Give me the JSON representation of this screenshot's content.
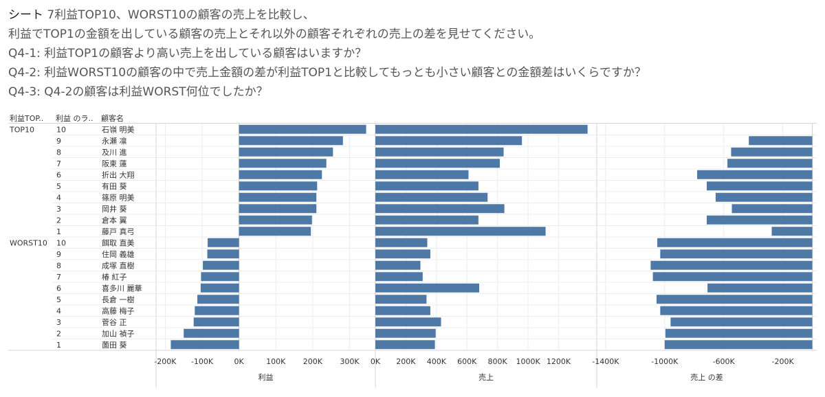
{
  "header": {
    "sheet_label": "シート",
    "line1_rest": " 7利益TOP10、WORST10の顧客の売上を比較し、",
    "line2": "利益でTOP1の金額を出している顧客の売上とそれ以外の顧客それぞれの売上の差を見せてください。",
    "q1": "Q4-1: 利益TOP1の顧客より高い売上を出している顧客はいますか？",
    "q2": "Q4-2: 利益WORST10の顧客の中で売上金額の差が利益TOP1と比較してもっとも小さい顧客との金額差はいくらですか？",
    "q3": "Q4-3: Q4-2の顧客は利益WORST何位でしたか？"
  },
  "columns": {
    "group": "利益TOP..",
    "rank": "利益 のラ..",
    "customer": "顧客名"
  },
  "colors": {
    "bar": "#4e79a7",
    "grid": "#ececec",
    "divider": "#d4d4d4",
    "text": "#333333"
  },
  "chart_data": {
    "type": "bar",
    "orientation": "horizontal",
    "groups": [
      {
        "label": "TOP10",
        "rows": [
          0,
          9
        ]
      },
      {
        "label": "WORST10",
        "rows": [
          10,
          19
        ]
      }
    ],
    "rows": [
      {
        "group": "TOP10",
        "rank": "10",
        "name": "石嶺 明美",
        "profit": 345000,
        "sales": 1390000,
        "diff": 0
      },
      {
        "group": "TOP10",
        "rank": "9",
        "name": "永瀬 凛",
        "profit": 282000,
        "sales": 960000,
        "diff": -430000
      },
      {
        "group": "TOP10",
        "rank": "8",
        "name": "及川 進",
        "profit": 255000,
        "sales": 840000,
        "diff": -550000
      },
      {
        "group": "TOP10",
        "rank": "7",
        "name": "阪東 蓮",
        "profit": 237000,
        "sales": 815000,
        "diff": -575000
      },
      {
        "group": "TOP10",
        "rank": "6",
        "name": "折出 大翔",
        "profit": 225000,
        "sales": 610000,
        "diff": -780000
      },
      {
        "group": "TOP10",
        "rank": "5",
        "name": "有田 葵",
        "profit": 212000,
        "sales": 675000,
        "diff": -715000
      },
      {
        "group": "TOP10",
        "rank": "4",
        "name": "篠原 明美",
        "profit": 210000,
        "sales": 735000,
        "diff": -655000
      },
      {
        "group": "TOP10",
        "rank": "3",
        "name": "岡井 葵",
        "profit": 210000,
        "sales": 845000,
        "diff": -545000
      },
      {
        "group": "TOP10",
        "rank": "2",
        "name": "倉本 翼",
        "profit": 198000,
        "sales": 675000,
        "diff": -715000
      },
      {
        "group": "TOP10",
        "rank": "1",
        "name": "藤戸 真弓",
        "profit": 195000,
        "sales": 1115000,
        "diff": -275000
      },
      {
        "group": "WORST10",
        "rank": "10",
        "name": "餌取 直美",
        "profit": -85000,
        "sales": 340000,
        "diff": -1050000
      },
      {
        "group": "WORST10",
        "rank": "9",
        "name": "住岡 義雄",
        "profit": -86000,
        "sales": 360000,
        "diff": -1030000
      },
      {
        "group": "WORST10",
        "rank": "8",
        "name": "成塚 直樹",
        "profit": -98000,
        "sales": 295000,
        "diff": -1095000
      },
      {
        "group": "WORST10",
        "rank": "7",
        "name": "椿 紅子",
        "profit": -103000,
        "sales": 310000,
        "diff": -1080000
      },
      {
        "group": "WORST10",
        "rank": "6",
        "name": "喜多川 麗華",
        "profit": -104000,
        "sales": 680000,
        "diff": -710000
      },
      {
        "group": "WORST10",
        "rank": "5",
        "name": "長倉 一樹",
        "profit": -113000,
        "sales": 335000,
        "diff": -1055000
      },
      {
        "group": "WORST10",
        "rank": "4",
        "name": "高藤 梅子",
        "profit": -120000,
        "sales": 360000,
        "diff": -1030000
      },
      {
        "group": "WORST10",
        "rank": "3",
        "name": "菅谷 正",
        "profit": -123000,
        "sales": 430000,
        "diff": -960000
      },
      {
        "group": "WORST10",
        "rank": "2",
        "name": "加山 禎子",
        "profit": -150000,
        "sales": 395000,
        "diff": -995000
      },
      {
        "group": "WORST10",
        "rank": "1",
        "name": "薗田 葵",
        "profit": -185000,
        "sales": 390000,
        "diff": -1000000
      }
    ],
    "panels": [
      {
        "key": "profit",
        "xlabel": "利益",
        "xlim": [
          -225000,
          370000
        ],
        "ticks": [
          -200000,
          -100000,
          0,
          100000,
          200000,
          300000
        ],
        "tick_labels": [
          "-200K",
          "-100K",
          "0K",
          "100K",
          "200K",
          "300K"
        ]
      },
      {
        "key": "sales",
        "xlabel": "売上",
        "xlim": [
          0,
          1450000
        ],
        "ticks": [
          0,
          200000,
          400000,
          600000,
          800000,
          1000000,
          1200000
        ],
        "tick_labels": [
          "0K",
          "200K",
          "400K",
          "600K",
          "800K",
          "1000K",
          "1200K"
        ]
      },
      {
        "key": "diff",
        "xlabel": "売上 の差",
        "xlim": [
          -1460000,
          30000
        ],
        "ticks": [
          -1400000,
          -1000000,
          -600000,
          -200000
        ],
        "tick_labels": [
          "-1400K",
          "-1000K",
          "-600K",
          "-200K"
        ]
      }
    ],
    "grid": true
  }
}
